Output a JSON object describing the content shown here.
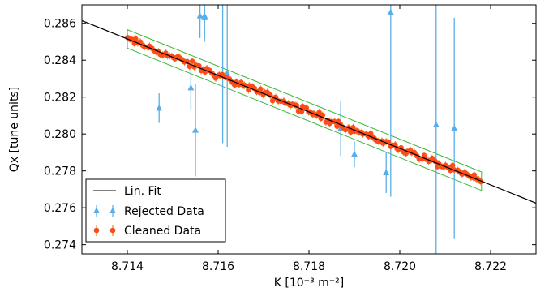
{
  "chart_data": {
    "type": "scatter",
    "xlabel": "K [10⁻³ m⁻²]",
    "ylabel": "Qx [tune units]",
    "xlim": [
      8.713,
      8.723
    ],
    "ylim": [
      0.2735,
      0.287
    ],
    "xticks": [
      "8.714",
      "8.716",
      "8.718",
      "8.720",
      "8.722"
    ],
    "yticks": [
      "0.274",
      "0.276",
      "0.278",
      "0.280",
      "0.282",
      "0.284",
      "0.286"
    ],
    "grid": false,
    "legend_position": "lower-left",
    "legend": [
      "Lin. Fit",
      "Rejected Data",
      "Cleaned Data"
    ],
    "colors": {
      "fit": "#000000",
      "rejected": "#5aaee8",
      "cleaned": "#ff4a1a",
      "cleaned_errbar": "#d99020",
      "band": "#3cb83c"
    },
    "fit": {
      "slope": -0.989,
      "intercept": 8.9033,
      "x_range": [
        8.713,
        8.723
      ]
    },
    "band": {
      "x_range": [
        8.714,
        8.7218
      ],
      "half_width": 0.0005
    },
    "cleaned": {
      "x_range": [
        8.714,
        8.7218
      ],
      "n_points": 160,
      "scatter": 0.00018,
      "errbar": 0.0002
    },
    "rejected": [
      {
        "x": 8.7147,
        "y": 0.2814,
        "yerr": 0.0008
      },
      {
        "x": 8.7154,
        "y": 0.2825,
        "yerr": 0.0012
      },
      {
        "x": 8.7155,
        "y": 0.2802,
        "yerr": 0.0025
      },
      {
        "x": 8.7156,
        "y": 0.2864,
        "yerr": 0.0012
      },
      {
        "x": 8.7157,
        "y": 0.2864,
        "yerr": 0.0012
      },
      {
        "x": 8.7157,
        "y": 0.2863,
        "yerr": 0.0013
      },
      {
        "x": 8.7161,
        "y": 0.2895,
        "yerr": 0.01
      },
      {
        "x": 8.7162,
        "y": 0.2833,
        "yerr": 0.004
      },
      {
        "x": 8.7187,
        "y": 0.2803,
        "yerr": 0.0015
      },
      {
        "x": 8.719,
        "y": 0.2789,
        "yerr": 0.0007
      },
      {
        "x": 8.7197,
        "y": 0.2779,
        "yerr": 0.0011
      },
      {
        "x": 8.7198,
        "y": 0.2866,
        "yerr": 0.01
      },
      {
        "x": 8.7208,
        "y": 0.2805,
        "yerr": 0.008
      },
      {
        "x": 8.7212,
        "y": 0.2803,
        "yerr": 0.006
      }
    ]
  }
}
